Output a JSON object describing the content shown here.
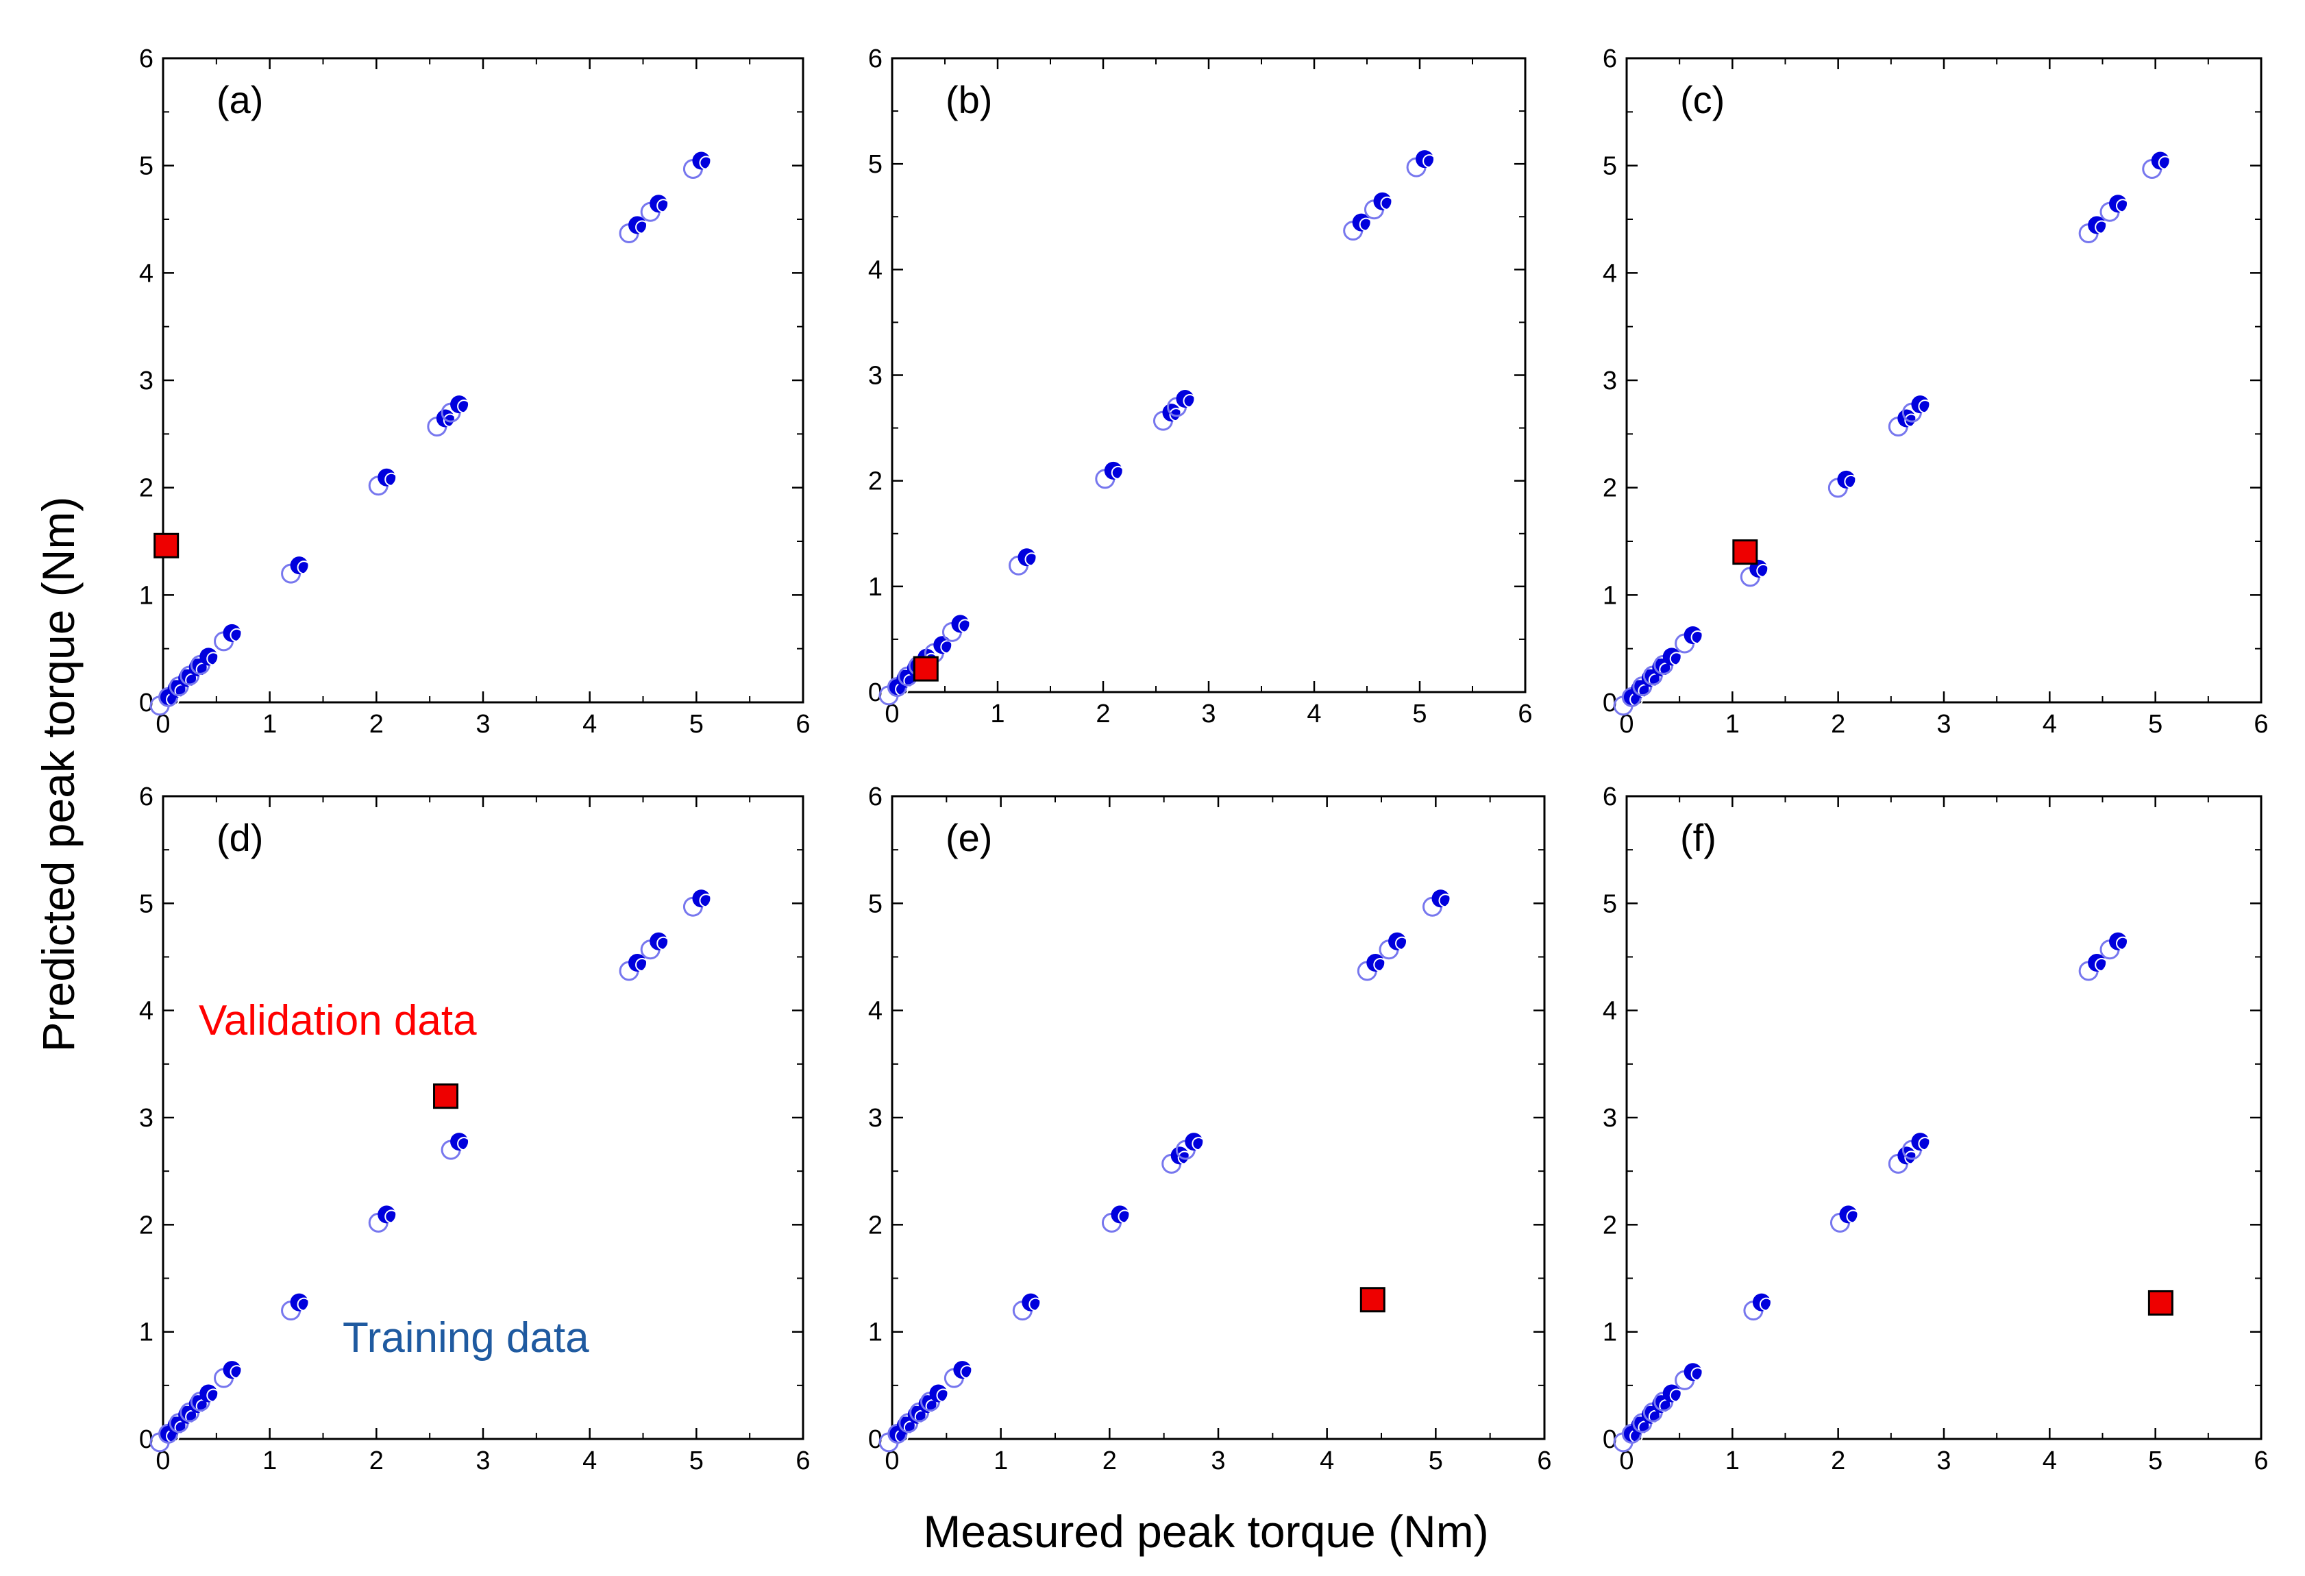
{
  "figure": {
    "xlabel": "Measured peak torque (Nm)",
    "ylabel": "Predicted peak torque (Nm)",
    "annotations": {
      "validation": "Validation data",
      "training": "Training data"
    },
    "colors": {
      "training": "#0000dd",
      "training_shadow": "#7777ee",
      "validation": "#ee0000",
      "validation_label": "#ff0000",
      "training_label": "#1f5aa0"
    }
  },
  "chart_data": [
    {
      "label": "(a)",
      "type": "scatter",
      "xlim": [
        0,
        6
      ],
      "ylim": [
        0,
        6
      ],
      "xticks": [
        "0",
        "1",
        "2",
        "3",
        "4",
        "5",
        "6"
      ],
      "yticks": [
        "0",
        "1",
        "2",
        "3",
        "4",
        "5",
        "6"
      ],
      "series": [
        {
          "name": "Training data",
          "points": [
            [
              0.02,
              0.02
            ],
            [
              0.1,
              0.1
            ],
            [
              0.2,
              0.2
            ],
            [
              0.3,
              0.3
            ],
            [
              0.4,
              0.4
            ],
            [
              0.62,
              0.62
            ],
            [
              1.25,
              1.25
            ],
            [
              2.07,
              2.07
            ],
            [
              2.62,
              2.62
            ],
            [
              2.75,
              2.75
            ],
            [
              4.42,
              4.42
            ],
            [
              4.62,
              4.62
            ],
            [
              5.02,
              5.02
            ]
          ]
        },
        {
          "name": "Validation data",
          "points": [
            [
              0.03,
              1.46
            ]
          ]
        }
      ]
    },
    {
      "label": "(b)",
      "type": "scatter",
      "xlim": [
        0,
        6
      ],
      "ylim": [
        0,
        6
      ],
      "xticks": [
        "0",
        "1",
        "2",
        "3",
        "4",
        "5",
        "6"
      ],
      "yticks": [
        "0",
        "1",
        "2",
        "3",
        "4",
        "5",
        "6"
      ],
      "series": [
        {
          "name": "Training data",
          "points": [
            [
              0.02,
              0.02
            ],
            [
              0.1,
              0.1
            ],
            [
              0.2,
              0.2
            ],
            [
              0.3,
              0.3
            ],
            [
              0.45,
              0.42
            ],
            [
              0.62,
              0.62
            ],
            [
              1.25,
              1.25
            ],
            [
              2.07,
              2.07
            ],
            [
              2.62,
              2.62
            ],
            [
              2.75,
              2.75
            ],
            [
              4.42,
              4.42
            ],
            [
              4.62,
              4.62
            ],
            [
              5.02,
              5.02
            ]
          ]
        },
        {
          "name": "Validation data",
          "points": [
            [
              0.32,
              0.22
            ]
          ]
        }
      ]
    },
    {
      "label": "(c)",
      "type": "scatter",
      "xlim": [
        0,
        6
      ],
      "ylim": [
        0,
        6
      ],
      "xticks": [
        "0",
        "1",
        "2",
        "3",
        "4",
        "5",
        "6"
      ],
      "yticks": [
        "0",
        "1",
        "2",
        "3",
        "4",
        "5",
        "6"
      ],
      "series": [
        {
          "name": "Training data",
          "points": [
            [
              0.02,
              0.02
            ],
            [
              0.1,
              0.1
            ],
            [
              0.2,
              0.2
            ],
            [
              0.3,
              0.3
            ],
            [
              0.4,
              0.4
            ],
            [
              0.6,
              0.6
            ],
            [
              1.22,
              1.22
            ],
            [
              2.05,
              2.05
            ],
            [
              2.62,
              2.62
            ],
            [
              2.75,
              2.75
            ],
            [
              4.42,
              4.42
            ],
            [
              4.62,
              4.62
            ],
            [
              5.02,
              5.02
            ]
          ]
        },
        {
          "name": "Validation data",
          "points": [
            [
              1.12,
              1.4
            ]
          ]
        }
      ]
    },
    {
      "label": "(d)",
      "type": "scatter",
      "xlim": [
        0,
        6
      ],
      "ylim": [
        0,
        6
      ],
      "xticks": [
        "0",
        "1",
        "2",
        "3",
        "4",
        "5",
        "6"
      ],
      "yticks": [
        "0",
        "1",
        "2",
        "3",
        "4",
        "5",
        "6"
      ],
      "series": [
        {
          "name": "Training data",
          "points": [
            [
              0.02,
              0.02
            ],
            [
              0.1,
              0.1
            ],
            [
              0.2,
              0.2
            ],
            [
              0.3,
              0.3
            ],
            [
              0.4,
              0.4
            ],
            [
              0.62,
              0.62
            ],
            [
              1.25,
              1.25
            ],
            [
              2.07,
              2.07
            ],
            [
              2.75,
              2.75
            ],
            [
              4.42,
              4.42
            ],
            [
              4.62,
              4.62
            ],
            [
              5.02,
              5.02
            ]
          ]
        },
        {
          "name": "Validation data",
          "points": [
            [
              2.65,
              3.2
            ]
          ]
        }
      ]
    },
    {
      "label": "(e)",
      "type": "scatter",
      "xlim": [
        0,
        6
      ],
      "ylim": [
        0,
        6
      ],
      "xticks": [
        "0",
        "1",
        "2",
        "3",
        "4",
        "5",
        "6"
      ],
      "yticks": [
        "0",
        "1",
        "2",
        "3",
        "4",
        "5",
        "6"
      ],
      "series": [
        {
          "name": "Training data",
          "points": [
            [
              0.02,
              0.02
            ],
            [
              0.1,
              0.1
            ],
            [
              0.2,
              0.2
            ],
            [
              0.3,
              0.3
            ],
            [
              0.4,
              0.4
            ],
            [
              0.62,
              0.62
            ],
            [
              1.25,
              1.25
            ],
            [
              2.07,
              2.07
            ],
            [
              2.62,
              2.62
            ],
            [
              2.75,
              2.75
            ],
            [
              4.42,
              4.42
            ],
            [
              4.62,
              4.62
            ],
            [
              5.02,
              5.02
            ]
          ]
        },
        {
          "name": "Validation data",
          "points": [
            [
              4.42,
              1.3
            ]
          ]
        }
      ]
    },
    {
      "label": "(f)",
      "type": "scatter",
      "xlim": [
        0,
        6
      ],
      "ylim": [
        0,
        6
      ],
      "xticks": [
        "0",
        "1",
        "2",
        "3",
        "4",
        "5",
        "6"
      ],
      "yticks": [
        "0",
        "1",
        "2",
        "3",
        "4",
        "5",
        "6"
      ],
      "series": [
        {
          "name": "Training data",
          "points": [
            [
              0.02,
              0.02
            ],
            [
              0.1,
              0.1
            ],
            [
              0.2,
              0.2
            ],
            [
              0.3,
              0.3
            ],
            [
              0.4,
              0.4
            ],
            [
              0.6,
              0.6
            ],
            [
              1.25,
              1.25
            ],
            [
              2.07,
              2.07
            ],
            [
              2.62,
              2.62
            ],
            [
              2.75,
              2.75
            ],
            [
              4.42,
              4.42
            ],
            [
              4.62,
              4.62
            ]
          ]
        },
        {
          "name": "Validation data",
          "points": [
            [
              5.05,
              1.27
            ]
          ]
        }
      ]
    }
  ]
}
